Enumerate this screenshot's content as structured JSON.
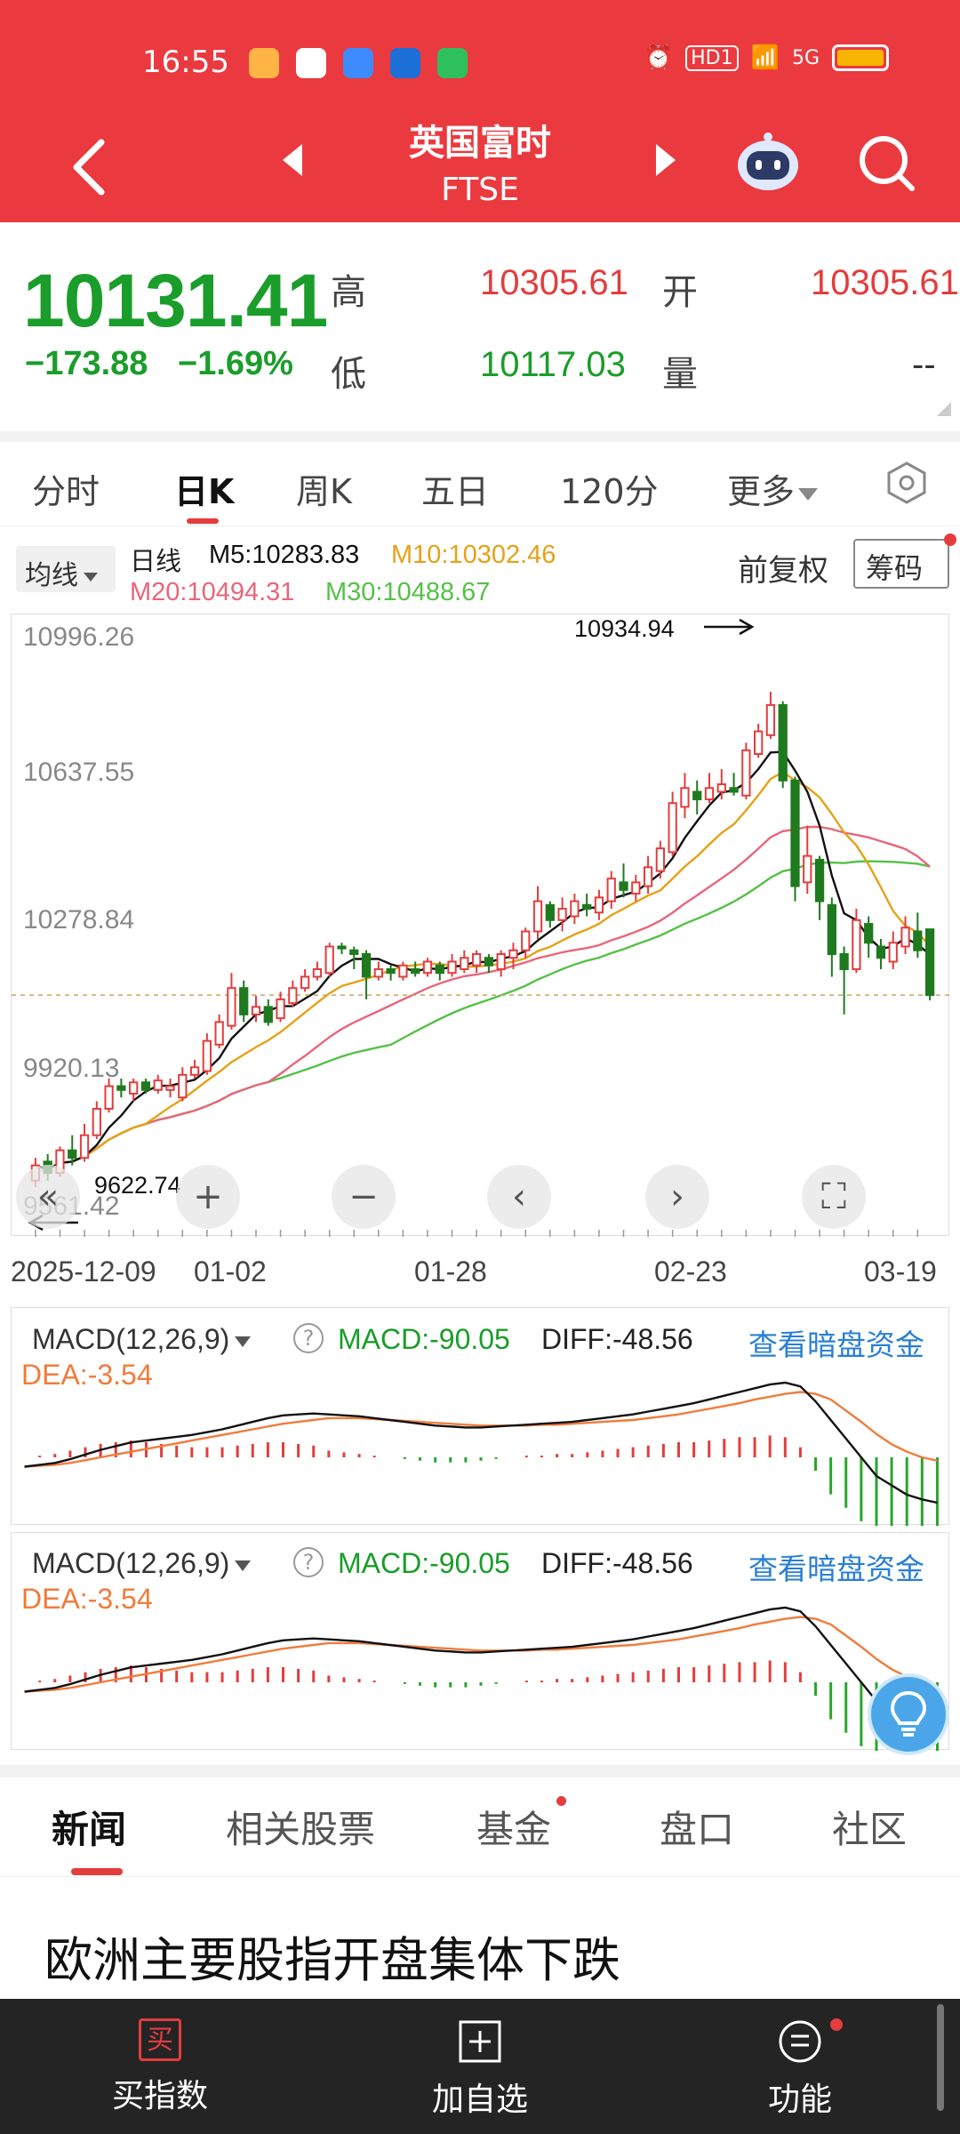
{
  "status_bar": {
    "time": "16:55",
    "network": "5G",
    "hd_badge": "HD1",
    "battery_color": "#f7b500"
  },
  "header": {
    "title": "英国富时",
    "subtitle": "FTSE",
    "accent_color": "#ea3a3f",
    "icons": [
      "back-arrow-icon",
      "prev-icon",
      "next-icon",
      "robot-assistant-icon",
      "search-icon"
    ]
  },
  "quote": {
    "price": "10131.41",
    "change": "−173.88",
    "change_pct": "−1.69%",
    "high_label": "高",
    "high": "10305.61",
    "open_label": "开",
    "open": "10305.61",
    "low_label": "低",
    "low": "10117.03",
    "volume_label": "量",
    "volume": "--"
  },
  "tabs": {
    "items": [
      "分时",
      "日K",
      "周K",
      "五日",
      "120分",
      "更多"
    ],
    "active": "日K",
    "settings_icon": "hexagon-settings-icon"
  },
  "indicator_bar": {
    "ma_button": "均线",
    "line_label": "日线",
    "m5": "M5:10283.83",
    "m10": "M10:10302.46",
    "m20": "M20:10494.31",
    "m30": "M30:10488.67",
    "adjust": "前复权",
    "chip_button": "筹码",
    "colors": {
      "m5": "#111111",
      "m10": "#e6a117",
      "m20": "#e8667a",
      "m30": "#55c147"
    }
  },
  "chart_data": [
    {
      "type": "candlestick",
      "title": "",
      "y_ticks": [
        "10996.26",
        "10637.55",
        "10278.84",
        "9920.13",
        "9561.42"
      ],
      "ylim": [
        9561.42,
        11140
      ],
      "x_ticks": [
        "2025-12-09",
        "01-02",
        "01-28",
        "02-23",
        "03-19"
      ],
      "max_label": "10934.94",
      "min_label": "9622.74",
      "last_close_dashed": 10131.41,
      "candles": [
        {
          "o": 9640,
          "c": 9680,
          "h": 9700,
          "l": 9622.74
        },
        {
          "o": 9690,
          "c": 9660,
          "h": 9710,
          "l": 9640
        },
        {
          "o": 9660,
          "c": 9720,
          "h": 9730,
          "l": 9650
        },
        {
          "o": 9720,
          "c": 9700,
          "h": 9760,
          "l": 9680
        },
        {
          "o": 9700,
          "c": 9760,
          "h": 9790,
          "l": 9690
        },
        {
          "o": 9760,
          "c": 9830,
          "h": 9850,
          "l": 9750
        },
        {
          "o": 9830,
          "c": 9890,
          "h": 9910,
          "l": 9820
        },
        {
          "o": 9890,
          "c": 9880,
          "h": 9910,
          "l": 9860
        },
        {
          "o": 9870,
          "c": 9900,
          "h": 9910,
          "l": 9850
        },
        {
          "o": 9900,
          "c": 9880,
          "h": 9910,
          "l": 9870
        },
        {
          "o": 9880,
          "c": 9905,
          "h": 9920,
          "l": 9870
        },
        {
          "o": 9880,
          "c": 9890,
          "h": 9910,
          "l": 9860
        },
        {
          "o": 9860,
          "c": 9920,
          "h": 9940,
          "l": 9850
        },
        {
          "o": 9920,
          "c": 9940,
          "h": 9960,
          "l": 9910
        },
        {
          "o": 9930,
          "c": 10010,
          "h": 10030,
          "l": 9920
        },
        {
          "o": 10000,
          "c": 10060,
          "h": 10080,
          "l": 9990
        },
        {
          "o": 10050,
          "c": 10150,
          "h": 10190,
          "l": 10040
        },
        {
          "o": 10150,
          "c": 10080,
          "h": 10170,
          "l": 10060
        },
        {
          "o": 10080,
          "c": 10100,
          "h": 10130,
          "l": 10060
        },
        {
          "o": 10100,
          "c": 10060,
          "h": 10120,
          "l": 10050
        },
        {
          "o": 10070,
          "c": 10120,
          "h": 10140,
          "l": 10060
        },
        {
          "o": 10110,
          "c": 10150,
          "h": 10170,
          "l": 10100
        },
        {
          "o": 10150,
          "c": 10180,
          "h": 10200,
          "l": 10140
        },
        {
          "o": 10180,
          "c": 10200,
          "h": 10220,
          "l": 10170
        },
        {
          "o": 10190,
          "c": 10260,
          "h": 10270,
          "l": 10180
        },
        {
          "o": 10260,
          "c": 10255,
          "h": 10270,
          "l": 10240
        },
        {
          "o": 10250,
          "c": 10240,
          "h": 10260,
          "l": 10200
        },
        {
          "o": 10240,
          "c": 10180,
          "h": 10250,
          "l": 10120
        },
        {
          "o": 10180,
          "c": 10200,
          "h": 10220,
          "l": 10170
        },
        {
          "o": 10200,
          "c": 10190,
          "h": 10210,
          "l": 10170
        },
        {
          "o": 10180,
          "c": 10210,
          "h": 10220,
          "l": 10170
        },
        {
          "o": 10200,
          "c": 10190,
          "h": 10220,
          "l": 10180
        },
        {
          "o": 10190,
          "c": 10220,
          "h": 10230,
          "l": 10180
        },
        {
          "o": 10210,
          "c": 10190,
          "h": 10220,
          "l": 10170
        },
        {
          "o": 10190,
          "c": 10220,
          "h": 10240,
          "l": 10180
        },
        {
          "o": 10200,
          "c": 10230,
          "h": 10250,
          "l": 10190
        },
        {
          "o": 10210,
          "c": 10240,
          "h": 10250,
          "l": 10190
        },
        {
          "o": 10230,
          "c": 10210,
          "h": 10240,
          "l": 10190
        },
        {
          "o": 10200,
          "c": 10240,
          "h": 10250,
          "l": 10180
        },
        {
          "o": 10230,
          "c": 10250,
          "h": 10270,
          "l": 10200
        },
        {
          "o": 10250,
          "c": 10300,
          "h": 10310,
          "l": 10230
        },
        {
          "o": 10300,
          "c": 10380,
          "h": 10420,
          "l": 10280
        },
        {
          "o": 10370,
          "c": 10330,
          "h": 10380,
          "l": 10310
        },
        {
          "o": 10330,
          "c": 10360,
          "h": 10390,
          "l": 10300
        },
        {
          "o": 10340,
          "c": 10380,
          "h": 10400,
          "l": 10320
        },
        {
          "o": 10370,
          "c": 10360,
          "h": 10400,
          "l": 10340
        },
        {
          "o": 10350,
          "c": 10390,
          "h": 10410,
          "l": 10330
        },
        {
          "o": 10380,
          "c": 10440,
          "h": 10460,
          "l": 10360
        },
        {
          "o": 10430,
          "c": 10410,
          "h": 10480,
          "l": 10390
        },
        {
          "o": 10400,
          "c": 10430,
          "h": 10450,
          "l": 10380
        },
        {
          "o": 10420,
          "c": 10470,
          "h": 10500,
          "l": 10400
        },
        {
          "o": 10460,
          "c": 10520,
          "h": 10540,
          "l": 10440
        },
        {
          "o": 10510,
          "c": 10640,
          "h": 10670,
          "l": 10500
        },
        {
          "o": 10630,
          "c": 10680,
          "h": 10720,
          "l": 10600
        },
        {
          "o": 10670,
          "c": 10650,
          "h": 10700,
          "l": 10610
        },
        {
          "o": 10650,
          "c": 10680,
          "h": 10720,
          "l": 10640
        },
        {
          "o": 10670,
          "c": 10690,
          "h": 10730,
          "l": 10650
        },
        {
          "o": 10680,
          "c": 10670,
          "h": 10720,
          "l": 10660
        },
        {
          "o": 10660,
          "c": 10780,
          "h": 10800,
          "l": 10650
        },
        {
          "o": 10770,
          "c": 10830,
          "h": 10850,
          "l": 10760
        },
        {
          "o": 10820,
          "c": 10900,
          "h": 10934.94,
          "l": 10810
        },
        {
          "o": 10900,
          "c": 10700,
          "h": 10910,
          "l": 10680
        },
        {
          "o": 10700,
          "c": 10420,
          "h": 10710,
          "l": 10380
        },
        {
          "o": 10430,
          "c": 10500,
          "h": 10580,
          "l": 10400
        },
        {
          "o": 10490,
          "c": 10380,
          "h": 10500,
          "l": 10330
        },
        {
          "o": 10370,
          "c": 10240,
          "h": 10390,
          "l": 10180
        },
        {
          "o": 10240,
          "c": 10200,
          "h": 10260,
          "l": 10080
        },
        {
          "o": 10200,
          "c": 10330,
          "h": 10360,
          "l": 10190
        },
        {
          "o": 10320,
          "c": 10270,
          "h": 10340,
          "l": 10230
        },
        {
          "o": 10260,
          "c": 10230,
          "h": 10280,
          "l": 10200
        },
        {
          "o": 10220,
          "c": 10270,
          "h": 10300,
          "l": 10200
        },
        {
          "o": 10260,
          "c": 10310,
          "h": 10340,
          "l": 10240
        },
        {
          "o": 10300,
          "c": 10250,
          "h": 10350,
          "l": 10230
        },
        {
          "o": 10305.61,
          "c": 10131.41,
          "h": 10305.61,
          "l": 10117.03
        }
      ]
    },
    {
      "type": "line+bar",
      "title": "MACD(12,26,9)",
      "series": [
        {
          "name": "DIFF",
          "color": "#111111"
        },
        {
          "name": "DEA",
          "color": "#f07c3c"
        },
        {
          "name": "MACD",
          "bar": true
        }
      ],
      "diff": [
        -10,
        -8,
        -6,
        -2,
        3,
        8,
        12,
        16,
        18,
        20,
        22,
        24,
        27,
        30,
        34,
        38,
        42,
        45,
        46,
        47,
        46,
        45,
        44,
        42,
        40,
        38,
        36,
        34,
        33,
        32,
        32,
        33,
        34,
        35,
        36,
        37,
        38,
        40,
        42,
        44,
        46,
        49,
        52,
        55,
        58,
        62,
        66,
        70,
        74,
        78,
        80,
        76,
        60,
        40,
        20,
        0,
        -20,
        -30,
        -40,
        -45,
        -48.56
      ],
      "dea": [
        -10,
        -9,
        -8,
        -6,
        -3,
        0,
        3,
        6,
        9,
        12,
        15,
        18,
        21,
        24,
        27,
        30,
        33,
        36,
        38,
        40,
        42,
        42,
        42,
        41,
        40,
        39,
        38,
        37,
        36,
        35,
        34,
        34,
        34,
        34,
        35,
        35,
        36,
        37,
        38,
        39,
        40,
        42,
        44,
        46,
        49,
        52,
        55,
        58,
        62,
        65,
        68,
        70,
        68,
        62,
        50,
        38,
        25,
        14,
        6,
        0,
        -3.54
      ]
    }
  ],
  "macd_panels": [
    {
      "selector": "MACD(12,26,9)",
      "macd": "MACD:-90.05",
      "diff": "DIFF:-48.56",
      "dea": "DEA:-3.54",
      "link": "查看暗盘资金"
    },
    {
      "selector": "MACD(12,26,9)",
      "macd": "MACD:-90.05",
      "diff": "DIFF:-48.56",
      "dea": "DEA:-3.54",
      "link": "查看暗盘资金"
    }
  ],
  "chart_controls": [
    "double-chevron-left-icon",
    "zoom-in-icon",
    "zoom-out-icon",
    "chevron-left-icon",
    "chevron-right-icon",
    "fullscreen-icon"
  ],
  "news_tabs": {
    "items": [
      "新闻",
      "相关股票",
      "基金",
      "盘口",
      "社区"
    ],
    "active": "新闻"
  },
  "news": {
    "headline": "欧洲主要股指开盘集体下跌"
  },
  "bottom_bar": {
    "items": [
      {
        "label": "买指数",
        "icon": "buy-icon"
      },
      {
        "label": "加自选",
        "icon": "add-watchlist-icon"
      },
      {
        "label": "功能",
        "icon": "menu-icon"
      }
    ],
    "buy_icon_char": "买"
  }
}
